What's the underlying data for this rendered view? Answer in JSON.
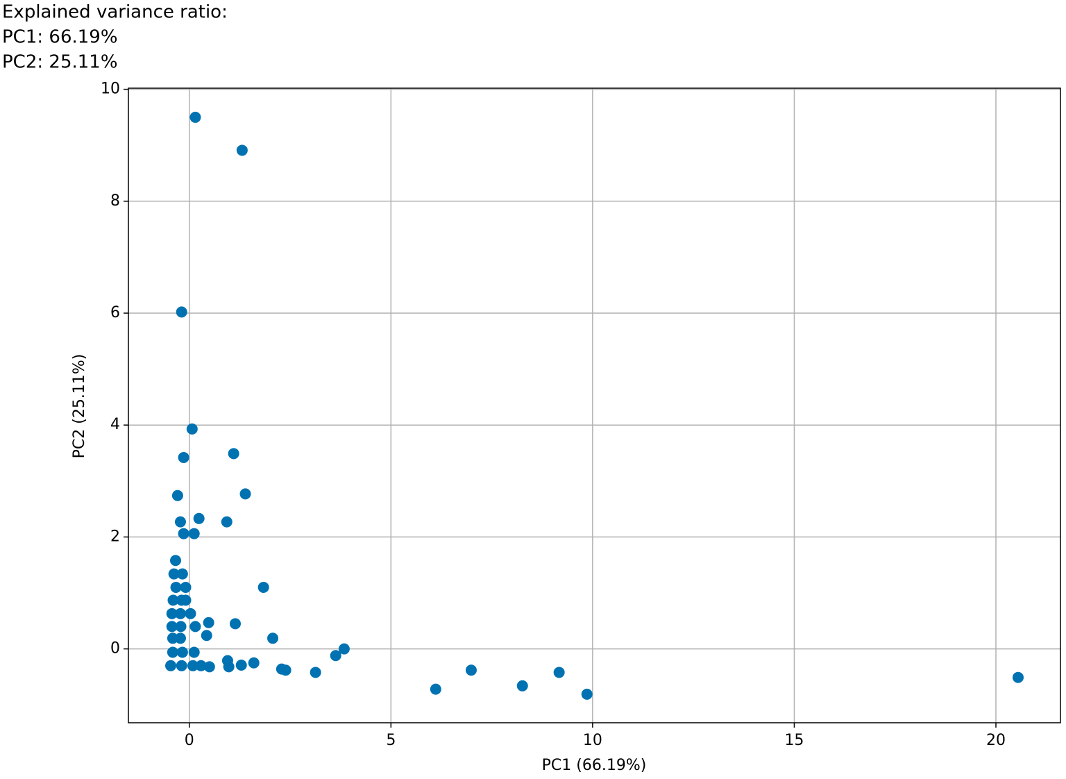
{
  "chart_data": {
    "type": "scatter",
    "annotations": [
      "Explained variance ratio:",
      "PC1: 66.19%",
      "PC2: 25.11%"
    ],
    "x_label": "PC1 (66.19%)",
    "y_label": "PC2 (25.11%)",
    "color": "#0072b2",
    "grid": true,
    "xlim": [
      -1.51,
      21.6
    ],
    "ylim": [
      -1.32,
      10.02
    ],
    "xticks": [
      0,
      5,
      10,
      15,
      20
    ],
    "yticks": [
      0,
      2,
      4,
      6,
      8,
      10
    ],
    "x": [
      0.15,
      1.31,
      -0.19,
      0.07,
      -0.14,
      1.1,
      -0.29,
      1.39,
      -0.22,
      0.24,
      0.93,
      -0.14,
      0.12,
      -0.34,
      -0.38,
      -0.17,
      -0.33,
      -0.09,
      1.84,
      -0.4,
      -0.19,
      -0.09,
      -0.43,
      -0.22,
      0.03,
      -0.43,
      -0.21,
      0.15,
      0.48,
      1.14,
      -0.41,
      -0.22,
      0.43,
      2.07,
      -0.41,
      -0.17,
      0.12,
      3.84,
      3.63,
      -0.46,
      -0.19,
      0.09,
      0.29,
      0.5,
      0.95,
      0.98,
      1.29,
      1.6,
      2.29,
      2.39,
      3.13,
      6.11,
      6.99,
      8.26,
      9.17,
      9.86,
      20.55
    ],
    "values": [
      9.5,
      8.91,
      6.02,
      3.93,
      3.42,
      3.49,
      2.74,
      2.77,
      2.27,
      2.33,
      2.27,
      2.06,
      2.06,
      1.58,
      1.34,
      1.34,
      1.1,
      1.1,
      1.1,
      0.87,
      0.87,
      0.87,
      0.63,
      0.63,
      0.63,
      0.4,
      0.4,
      0.4,
      0.47,
      0.45,
      0.19,
      0.19,
      0.24,
      0.19,
      -0.06,
      -0.06,
      -0.06,
      0.0,
      -0.12,
      -0.3,
      -0.3,
      -0.3,
      -0.3,
      -0.32,
      -0.21,
      -0.32,
      -0.29,
      -0.25,
      -0.36,
      -0.38,
      -0.42,
      -0.72,
      -0.38,
      -0.66,
      -0.42,
      -0.81,
      -0.51
    ]
  }
}
